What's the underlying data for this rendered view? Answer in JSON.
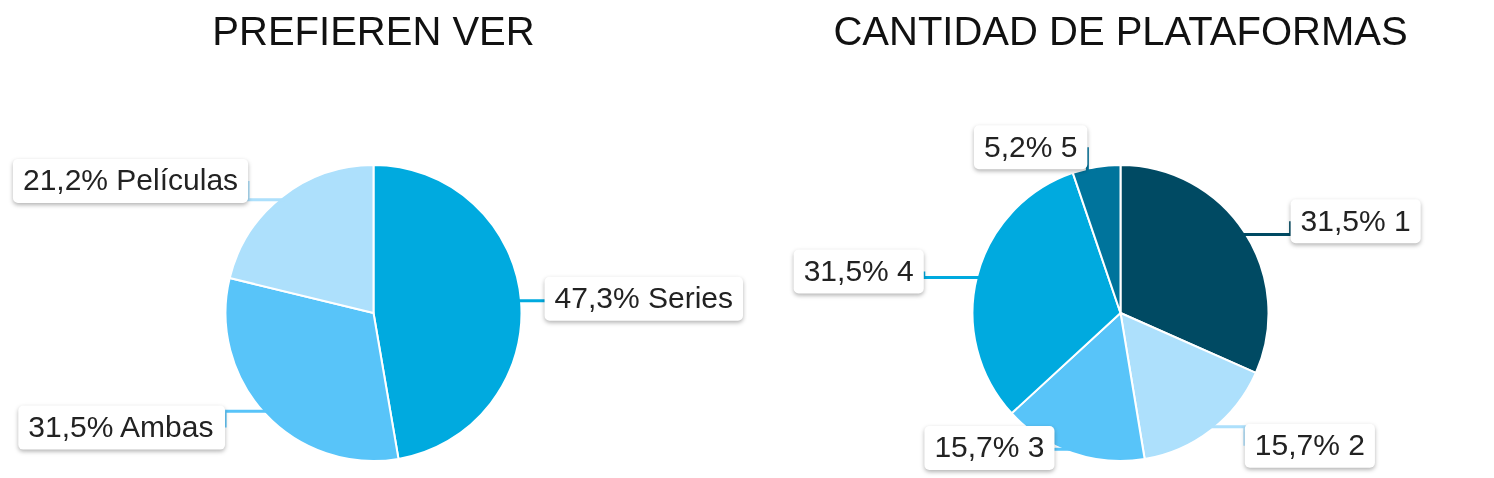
{
  "chart_data": [
    {
      "type": "pie",
      "title": "PREFIEREN VER",
      "categories": [
        "Series",
        "Ambas",
        "Películas"
      ],
      "values": [
        47.3,
        31.5,
        21.2
      ],
      "colors": [
        "#00aadf",
        "#58c4f9",
        "#ade0fc"
      ],
      "value_labels": [
        "47,3%",
        "31,5%",
        "21,2%"
      ]
    },
    {
      "type": "pie",
      "title": "CANTIDAD DE PLATAFORMAS",
      "categories": [
        "1",
        "2",
        "3",
        "4",
        "5"
      ],
      "values": [
        31.5,
        15.7,
        15.7,
        31.5,
        5.2
      ],
      "colors": [
        "#004a63",
        "#ade0fc",
        "#58c4f9",
        "#00aadf",
        "#00749c"
      ],
      "value_labels": [
        "31,5%",
        "15,7%",
        "15,7%",
        "31,5%",
        "5,2%"
      ]
    }
  ]
}
